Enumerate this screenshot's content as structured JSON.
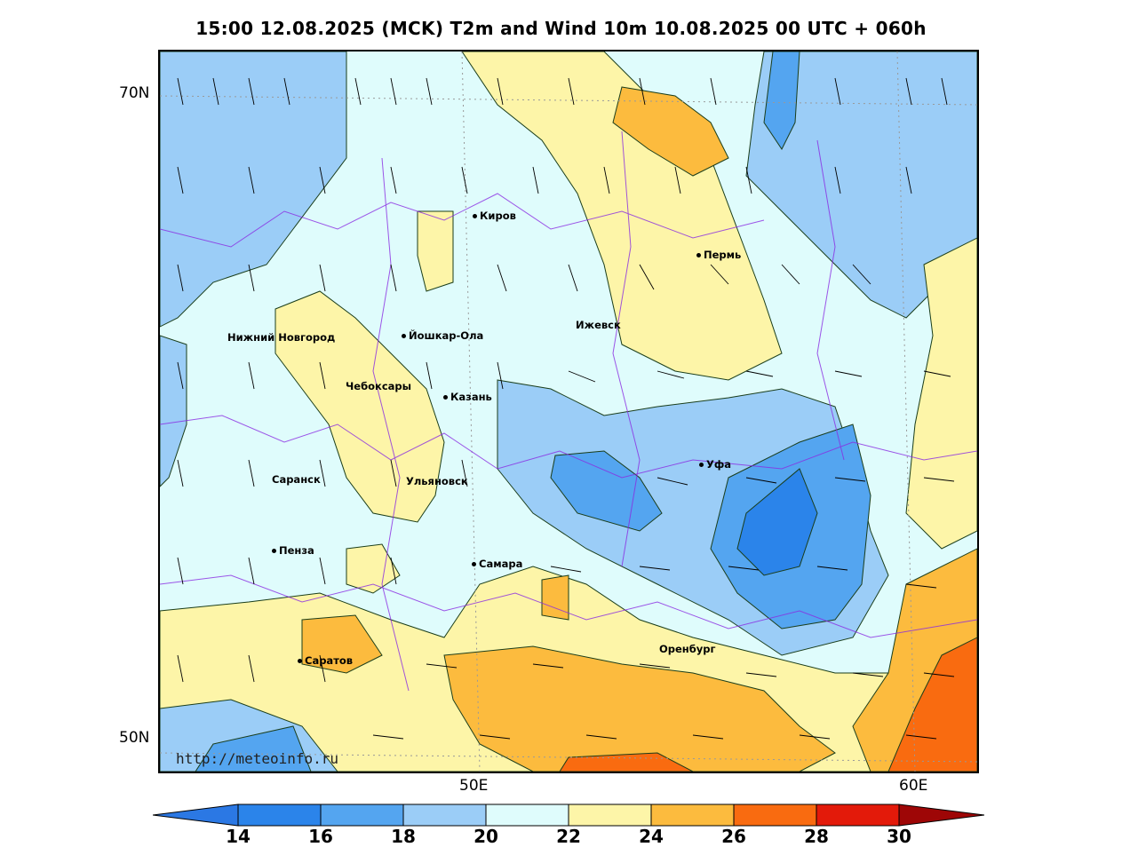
{
  "title": "15:00 12.08.2025 (MCK) T2m and Wind 10m 10.08.2025 00 UTC + 060h",
  "axes": {
    "lat_labels": [
      "70N",
      "50N"
    ],
    "lon_labels": [
      "50E",
      "60E"
    ]
  },
  "cities": [
    {
      "name": "Киров"
    },
    {
      "name": "Пермь"
    },
    {
      "name": "Нижний Новгород"
    },
    {
      "name": "Йошкар-Ола"
    },
    {
      "name": "Ижевск"
    },
    {
      "name": "Чебоксары"
    },
    {
      "name": "Казань"
    },
    {
      "name": "Уфа"
    },
    {
      "name": "Саранск"
    },
    {
      "name": "Ульяновск"
    },
    {
      "name": "Пенза"
    },
    {
      "name": "Самара"
    },
    {
      "name": "Оренбург"
    },
    {
      "name": "Саратов"
    }
  ],
  "credit": "http://meteoinfo.ru",
  "colorbar": {
    "ticks": [
      "14",
      "16",
      "18",
      "20",
      "22",
      "24",
      "26",
      "28",
      "30"
    ],
    "colors": [
      "#2b78e4",
      "#2b84ea",
      "#54a5f0",
      "#9bcdf7",
      "#dffcfc",
      "#fdf5a8",
      "#fcbb3e",
      "#f96b10",
      "#e31a0a",
      "#9e0606"
    ]
  }
}
